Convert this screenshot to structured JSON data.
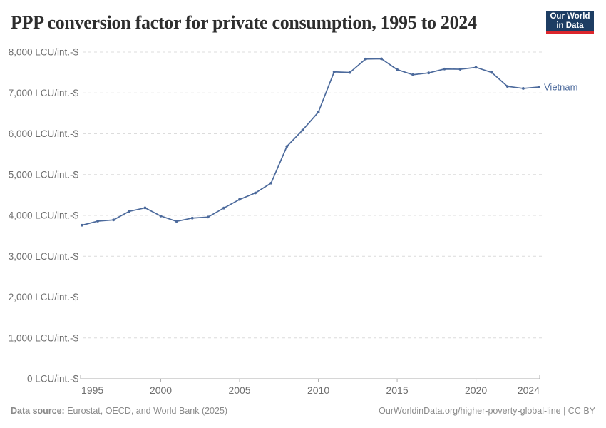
{
  "header": {
    "title": "PPP conversion factor for private consumption, 1995 to 2024",
    "logo": {
      "line1": "Our World",
      "line2": "in Data",
      "bg_color": "#1d3d63",
      "bar_color": "#dc262c"
    }
  },
  "chart_data": {
    "type": "line",
    "title": "PPP conversion factor for private consumption, 1995 to 2024",
    "unit": "LCU/int.-$",
    "x": [
      1995,
      1996,
      1997,
      1998,
      1999,
      2000,
      2001,
      2002,
      2003,
      2004,
      2005,
      2006,
      2007,
      2008,
      2009,
      2010,
      2011,
      2012,
      2013,
      2014,
      2015,
      2016,
      2017,
      2018,
      2019,
      2020,
      2021,
      2022,
      2023,
      2024
    ],
    "series": [
      {
        "name": "Vietnam",
        "color": "#4c6a9c",
        "values": [
          3760,
          3860,
          3890,
          4100,
          4185,
          3985,
          3855,
          3935,
          3960,
          4180,
          4390,
          4550,
          4790,
          5690,
          6090,
          6530,
          7515,
          7500,
          7830,
          7835,
          7570,
          7445,
          7490,
          7585,
          7580,
          7625,
          7500,
          7160,
          7110,
          7145
        ]
      }
    ],
    "ylim": [
      0,
      8000
    ],
    "yticks": [
      0,
      1000,
      2000,
      3000,
      4000,
      5000,
      6000,
      7000,
      8000
    ],
    "xticks": [
      1995,
      2000,
      2005,
      2010,
      2015,
      2020,
      2024
    ],
    "grid": "horizontal-dashed",
    "legend": "line-end-label"
  },
  "footer": {
    "source_label": "Data source:",
    "source_text": " Eurostat, OECD, and World Bank (2025)",
    "link_text": "OurWorldinData.org/higher-poverty-global-line | CC BY"
  }
}
